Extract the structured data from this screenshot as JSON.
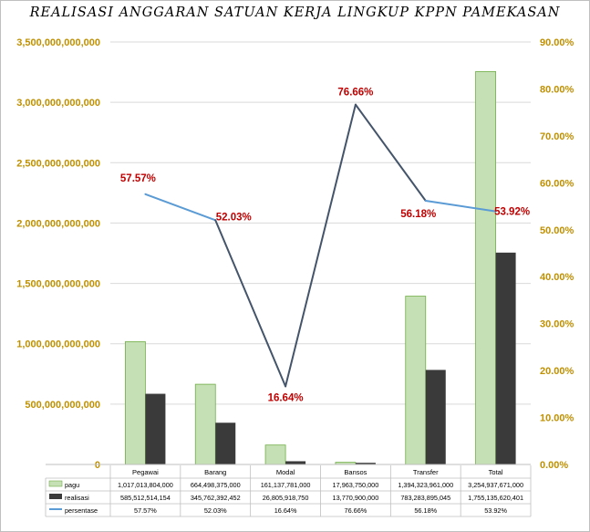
{
  "chart_data": {
    "type": "bar",
    "title": "REALISASI ANGGARAN SATUAN KERJA LINGKUP KPPN PAMEKASAN",
    "categories": [
      "Pegawai",
      "Barang",
      "Modal",
      "Bansos",
      "Transfer",
      "Total"
    ],
    "series": [
      {
        "name": "pagu",
        "kind": "bar",
        "axis": "left",
        "color": "#c5e0b4",
        "values": [
          1017013804000,
          664498375000,
          161137781000,
          17963750000,
          1394323961000,
          3254937671000
        ],
        "labels": [
          "1,017,013,804,000",
          "664,498,375,000",
          "161,137,781,000",
          "17,963,750,000",
          "1,394,323,961,000",
          "3,254,937,671,000"
        ]
      },
      {
        "name": "realisasi",
        "kind": "bar",
        "axis": "left",
        "color": "#3a3a3a",
        "values": [
          585512514154,
          345762392452,
          26805918750,
          13770900000,
          783283895045,
          1755135620401
        ],
        "labels": [
          "585,512,514,154",
          "345,762,392,452",
          "26,805,918,750",
          "13,770,900,000",
          "783,283,895,045",
          "1,755,135,620,401"
        ]
      },
      {
        "name": "persentase",
        "kind": "line",
        "axis": "right",
        "color": "#5b9bd5",
        "values": [
          57.57,
          52.03,
          16.64,
          76.66,
          56.18,
          53.92
        ],
        "labels": [
          "57.57%",
          "52.03%",
          "16.64%",
          "76.66%",
          "56.18%",
          "53.92%"
        ]
      }
    ],
    "y_left": {
      "range": [
        0,
        3500000000000
      ],
      "ticks": [
        "0",
        "500,000,000,000",
        "1,000,000,000,000",
        "1,500,000,000,000",
        "2,000,000,000,000",
        "2,500,000,000,000",
        "3,000,000,000,000",
        "3,500,000,000,000"
      ]
    },
    "y_right": {
      "range": [
        0,
        90
      ],
      "ticks": [
        "0.00%",
        "10.00%",
        "20.00%",
        "30.00%",
        "40.00%",
        "50.00%",
        "60.00%",
        "70.00%",
        "80.00%",
        "90.00%"
      ]
    },
    "tick_color": "#bf9000",
    "point_label_color": "#c00000",
    "grid": "horizontal",
    "legend": "data-table"
  }
}
